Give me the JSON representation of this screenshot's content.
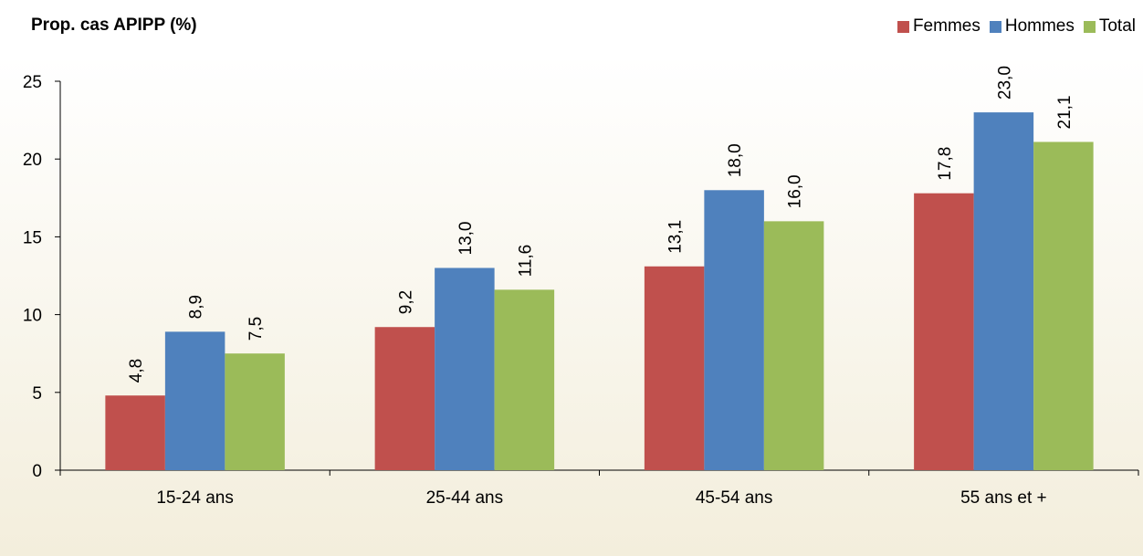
{
  "chart_data": {
    "type": "bar",
    "title": "",
    "ylabel": "Prop. cas APIPP (%)",
    "xlabel": "",
    "categories": [
      "15-24 ans",
      "25-44 ans",
      "45-54 ans",
      "55 ans et +"
    ],
    "series": [
      {
        "name": "Femmes",
        "values": [
          4.8,
          9.2,
          13.1,
          17.8
        ],
        "labels": [
          "4,8",
          "9,2",
          "13,1",
          "17,8"
        ],
        "color": "#C0504D"
      },
      {
        "name": "Hommes",
        "values": [
          8.9,
          13.0,
          18.0,
          23.0
        ],
        "labels": [
          "8,9",
          "13,0",
          "18,0",
          "23,0"
        ],
        "color": "#4F81BD"
      },
      {
        "name": "Total",
        "values": [
          7.5,
          11.6,
          16.0,
          21.1
        ],
        "labels": [
          "7,5",
          "11,6",
          "16,0",
          "21,1"
        ],
        "color": "#9BBB59"
      }
    ],
    "ylim": [
      0,
      25
    ],
    "yticks": [
      0,
      5,
      10,
      15,
      20,
      25
    ],
    "grid": false,
    "legend": "top-right",
    "background_color": "#F3EEDC"
  }
}
